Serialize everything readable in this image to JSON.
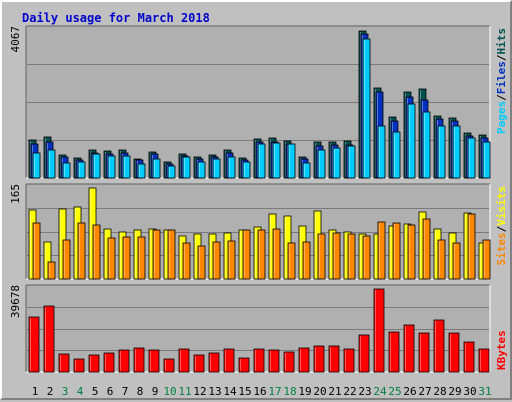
{
  "colors": {
    "background": "#c0c0c0",
    "panel": "#b0b0b0",
    "grid": "#7a7a7a",
    "title": "#0000cc",
    "hits": "#005050",
    "files": "#0030c0",
    "pages": "#00ccff",
    "visits": "#ffff00",
    "sites": "#ff8800",
    "kbytes": "#ff0000",
    "weekday_label": "#000000",
    "weekend_label": "#008040"
  },
  "chart_data": {
    "type": "bar",
    "title": "Daily usage for March 2018",
    "categories": [
      "1",
      "2",
      "3",
      "4",
      "5",
      "6",
      "7",
      "8",
      "9",
      "10",
      "11",
      "12",
      "13",
      "14",
      "15",
      "16",
      "17",
      "18",
      "19",
      "20",
      "21",
      "22",
      "23",
      "24",
      "25",
      "26",
      "27",
      "28",
      "29",
      "30",
      "31"
    ],
    "weekend_days": [
      "3",
      "4",
      "10",
      "11",
      "17",
      "18",
      "24",
      "25",
      "31"
    ],
    "panels": [
      {
        "ymax_label": "4067",
        "ylim": [
          0,
          4067
        ],
        "legend": [
          "Pages",
          "Files",
          "Hits"
        ],
        "series": [
          {
            "name": "Hits",
            "values": [
              1040,
              1110,
              620,
              540,
              760,
              730,
              770,
              530,
              720,
              440,
              660,
              580,
              620,
              760,
              550,
              1070,
              1080,
              1020,
              580,
              970,
              990,
              1000,
              4000,
              2470,
              1660,
              2350,
              2440,
              1700,
              1650,
              1230,
              1180
            ]
          },
          {
            "name": "Files",
            "values": [
              920,
              990,
              560,
              500,
              690,
              660,
              690,
              480,
              650,
              390,
              600,
              530,
              560,
              690,
              500,
              970,
              990,
              930,
              530,
              880,
              900,
              910,
              3930,
              2360,
              1550,
              2220,
              2140,
              1600,
              1550,
              1150,
              1100
            ]
          },
          {
            "name": "Pages",
            "values": [
              690,
              760,
              420,
              430,
              660,
              610,
              600,
              380,
              520,
              330,
              570,
              450,
              510,
              560,
              440,
              930,
              960,
              930,
              420,
              770,
              810,
              870,
              3800,
              1420,
              1250,
              2020,
              1810,
              1420,
              1420,
              1080,
              980
            ]
          }
        ]
      },
      {
        "ymax_label": "165",
        "ylim": [
          0,
          165
        ],
        "legend": [
          "Sites",
          "/",
          "Visits"
        ],
        "series": [
          {
            "name": "Visits",
            "values": [
              123,
              67,
              125,
              130,
              163,
              90,
              85,
              88,
              90,
              87,
              77,
              80,
              80,
              82,
              87,
              93,
              116,
              113,
              95,
              122,
              87,
              84,
              80,
              80,
              95,
              98,
              120,
              90,
              82,
              118,
              65
            ]
          },
          {
            "name": "Sites",
            "values": [
              100,
              30,
              70,
              100,
              97,
              73,
              75,
              75,
              88,
              88,
              65,
              60,
              67,
              68,
              88,
              88,
              90,
              65,
              67,
              80,
              82,
              80,
              78,
              102,
              100,
              97,
              108,
              70,
              65,
              117,
              70
            ]
          }
        ]
      },
      {
        "ymax_label": "39678",
        "ylim": [
          0,
          39678
        ],
        "legend": [
          "KBytes"
        ],
        "series": [
          {
            "name": "KBytes",
            "values": [
              26200,
              31100,
              8700,
              6200,
              8100,
              9200,
              10300,
              11500,
              10500,
              6200,
              10800,
              8200,
              9100,
              10800,
              6600,
              11000,
              10300,
              9600,
              11200,
              12100,
              12300,
              10800,
              17600,
              39300,
              18900,
              22400,
              18600,
              24600,
              18500,
              14400,
              10700
            ]
          }
        ]
      }
    ]
  }
}
